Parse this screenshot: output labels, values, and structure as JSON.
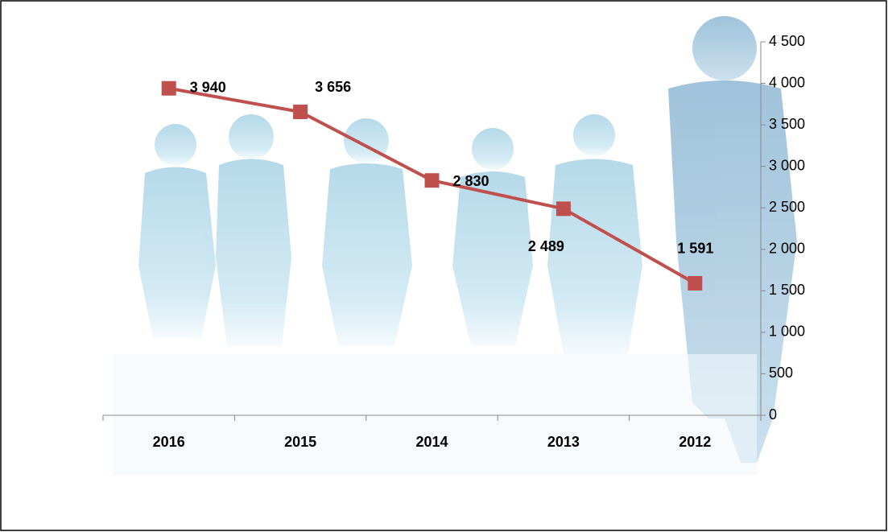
{
  "chart_data": {
    "type": "line",
    "categories": [
      "2016",
      "2015",
      "2014",
      "2013",
      "2012"
    ],
    "values": [
      3940,
      3656,
      2830,
      2489,
      1591
    ],
    "value_labels": [
      "3 940",
      "3 656",
      "2 830",
      "2 489",
      "1 591"
    ],
    "color": "#c0504d",
    "ylim": [
      0,
      4500
    ],
    "yticks": [
      0,
      500,
      {
        "value": 1000,
        "label": "1 000"
      },
      {
        "value": 1500,
        "label": "1 500"
      },
      {
        "value": 2000,
        "label": "2 000"
      },
      {
        "value": 2500,
        "label": "2 500"
      },
      {
        "value": 3000,
        "label": "3 000"
      },
      {
        "value": 3500,
        "label": "3 500"
      },
      {
        "value": 4000,
        "label": "4 000"
      },
      {
        "value": 4500,
        "label": "4 500"
      }
    ],
    "y_axis_side": "right",
    "grid": false
  }
}
